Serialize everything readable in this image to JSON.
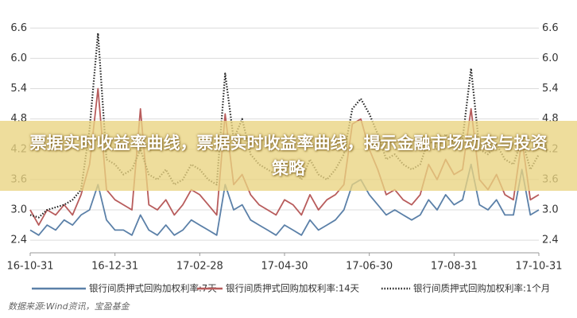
{
  "chart_data": {
    "type": "line",
    "categories": [
      "16-10-31",
      null,
      null,
      null,
      null,
      null,
      null,
      null,
      null,
      null,
      "16-12-31",
      null,
      null,
      null,
      null,
      null,
      null,
      null,
      null,
      null,
      "17-02-28",
      null,
      null,
      null,
      null,
      null,
      null,
      null,
      null,
      null,
      "17-04-30",
      null,
      null,
      null,
      null,
      null,
      null,
      null,
      null,
      null,
      "17-06-30",
      null,
      null,
      null,
      null,
      null,
      null,
      null,
      null,
      null,
      "17-08-31",
      null,
      null,
      null,
      null,
      null,
      null,
      null,
      null,
      null,
      "17-10-31"
    ],
    "series": [
      {
        "name": "银行间质押式回购加权利率:7天",
        "color": "#5b80a8",
        "style": "solid",
        "values": [
          2.6,
          2.5,
          2.7,
          2.6,
          2.8,
          2.7,
          2.9,
          3.0,
          3.5,
          2.8,
          2.6,
          2.6,
          2.5,
          2.9,
          2.6,
          2.5,
          2.7,
          2.5,
          2.6,
          2.8,
          2.7,
          2.6,
          2.5,
          3.5,
          3.0,
          3.1,
          2.8,
          2.7,
          2.6,
          2.5,
          2.7,
          2.6,
          2.5,
          2.8,
          2.6,
          2.7,
          2.8,
          3.0,
          3.5,
          3.6,
          3.3,
          3.1,
          2.9,
          3.0,
          2.9,
          2.8,
          2.9,
          3.2,
          3.0,
          3.3,
          3.1,
          3.2,
          3.9,
          3.1,
          3.0,
          3.2,
          2.9,
          2.9,
          3.8,
          2.9,
          3.0
        ]
      },
      {
        "name": "银行间质押式回购加权利率:14天",
        "color": "#b85c5c",
        "style": "solid",
        "values": [
          3.0,
          2.7,
          3.0,
          2.9,
          3.1,
          2.9,
          3.3,
          3.9,
          5.4,
          3.4,
          3.2,
          3.1,
          3.0,
          5.0,
          3.1,
          3.0,
          3.2,
          2.9,
          3.1,
          3.4,
          3.3,
          3.1,
          2.9,
          4.9,
          3.5,
          3.7,
          3.3,
          3.1,
          3.0,
          2.9,
          3.2,
          3.1,
          2.9,
          3.3,
          3.0,
          3.2,
          3.3,
          3.5,
          4.7,
          4.8,
          4.2,
          3.8,
          3.3,
          3.4,
          3.2,
          3.1,
          3.3,
          3.9,
          3.6,
          4.0,
          3.7,
          3.8,
          5.0,
          3.6,
          3.4,
          3.7,
          3.3,
          3.2,
          4.4,
          3.2,
          3.3
        ]
      },
      {
        "name": "银行间质押式回购加权利率:1个月",
        "color": "#222222",
        "style": "dotted",
        "values": [
          2.9,
          2.85,
          3.0,
          3.05,
          3.1,
          3.2,
          3.4,
          4.6,
          6.5,
          4.0,
          3.9,
          3.7,
          3.8,
          4.2,
          3.7,
          3.6,
          3.8,
          3.5,
          3.6,
          3.9,
          3.8,
          3.6,
          3.5,
          5.7,
          4.4,
          4.8,
          4.1,
          3.9,
          3.8,
          3.7,
          3.9,
          3.8,
          3.6,
          4.0,
          3.7,
          3.6,
          3.8,
          4.1,
          5.0,
          5.2,
          4.9,
          4.5,
          4.0,
          4.1,
          3.9,
          3.8,
          3.9,
          4.4,
          4.2,
          4.5,
          4.3,
          4.4,
          5.8,
          4.2,
          4.1,
          4.3,
          4.0,
          3.9,
          4.4,
          3.8,
          4.1
        ]
      }
    ],
    "ylim": [
      2.15,
      6.8
    ],
    "yticks": [
      2.4,
      {
        "value": 3,
        "label": "3.0"
      },
      3.6,
      4.2,
      4.8,
      5.4,
      {
        "value": 6,
        "label": "6.0"
      },
      6.6
    ],
    "y2lim": [
      2.15,
      6.8
    ],
    "y2ticks": [
      2.4,
      {
        "value": 3,
        "label": "3.0"
      },
      3.6,
      4.2,
      4.8,
      5.4,
      {
        "value": 6,
        "label": "6.0"
      },
      6.6
    ],
    "grid": true,
    "legend": "bottom",
    "source": "数据来源:Wind资讯，宝盈基金"
  },
  "banner": {
    "text": "票据实时收益率曲线，票据实时收益率曲线，揭示金融市场动态与投资策略"
  }
}
